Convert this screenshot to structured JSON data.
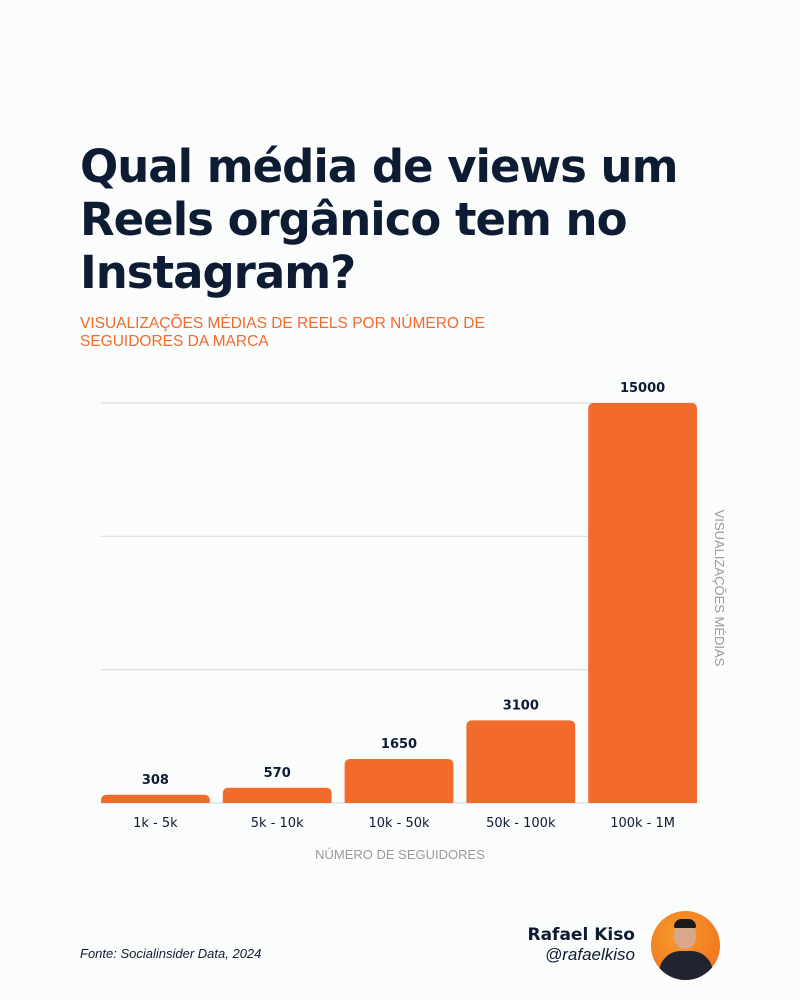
{
  "title": "Qual média de views um Reels orgânico tem no Instagram?",
  "subtitle": "Visualizações médias de Reels por número de seguidores da marca",
  "source": "Fonte: Socialinsider Data, 2024",
  "author": {
    "name": "Rafael Kiso",
    "handle": "@rafaelkiso"
  },
  "colors": {
    "bar": "#f26a2c",
    "text": "#0e1c33",
    "axis_label": "#9a9a9a",
    "grid": "#dddddd"
  },
  "chart_data": {
    "type": "bar",
    "categories": [
      "1k - 5k",
      "5k - 10k",
      "10k - 50k",
      "50k - 100k",
      "100k - 1M"
    ],
    "values": [
      308,
      570,
      1650,
      3100,
      15000
    ],
    "data_labels": [
      "308",
      "570",
      "1650",
      "3100",
      "15000"
    ],
    "xlabel": "NÚMERO DE SEGUIDORES",
    "ylabel": "VISUALIZAÇÕES MÉDIAS",
    "ylim": [
      0,
      15000
    ],
    "gridlines": [
      0,
      5000,
      10000,
      15000
    ],
    "grid": true
  }
}
